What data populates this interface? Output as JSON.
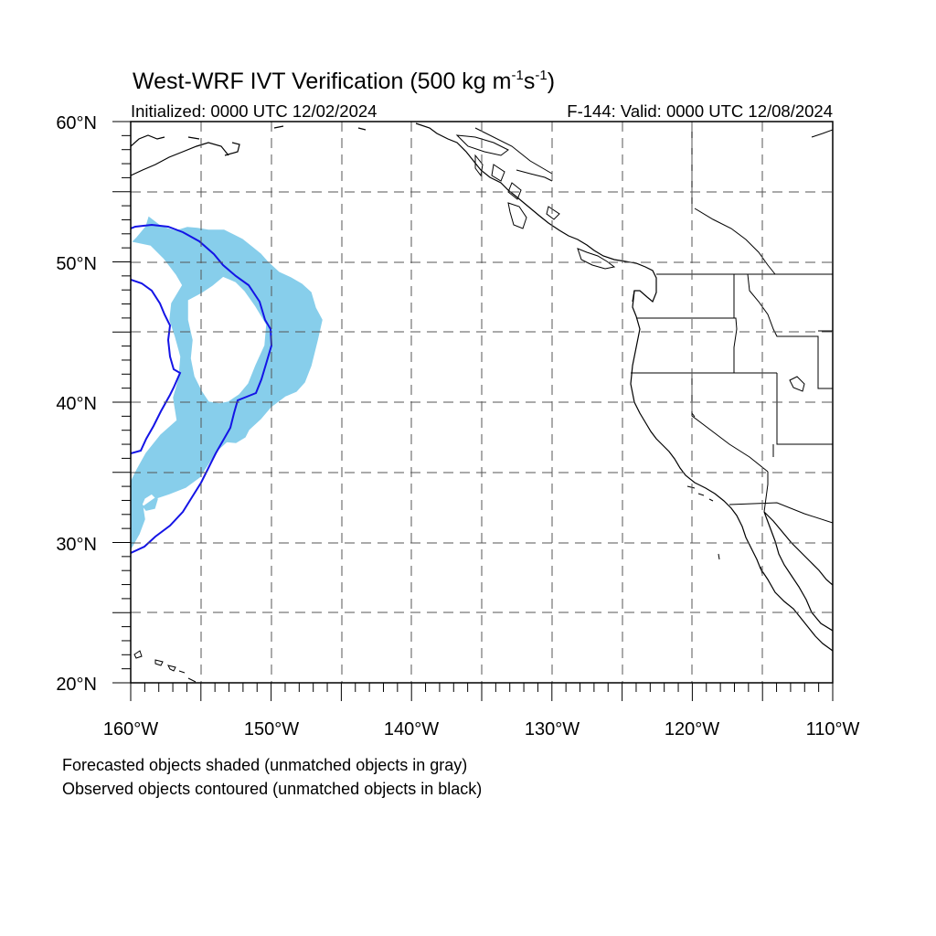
{
  "map": {
    "title": "West-WRF IVT Verification",
    "title_units": "(500 kg m",
    "title_sup1": "-1",
    "title_mid": "s",
    "title_sup2": "-1",
    "title_close": ")",
    "initialized_label": "Initialized: 0000 UTC 12/02/2024",
    "valid_label": "F-144: Valid: 0000 UTC 12/08/2024",
    "lat_labels": [
      "60°N",
      "50°N",
      "40°N",
      "30°N",
      "20°N"
    ],
    "lon_labels": [
      "160°W",
      "150°W",
      "140°W",
      "130°W",
      "120°W",
      "110°W"
    ],
    "extent": {
      "lon_min": -160,
      "lon_max": -110,
      "lat_min": 20,
      "lat_max": 60
    },
    "grid": "dashed every 5°",
    "colors": {
      "forecast_fill": "#87ceeb",
      "observed_contour": "#1414e6",
      "coastline": "#000000"
    },
    "footnote_line1": "Forecasted objects shaded (unmatched objects in gray)",
    "footnote_line2": "Observed objects contoured (unmatched objects in black)"
  }
}
